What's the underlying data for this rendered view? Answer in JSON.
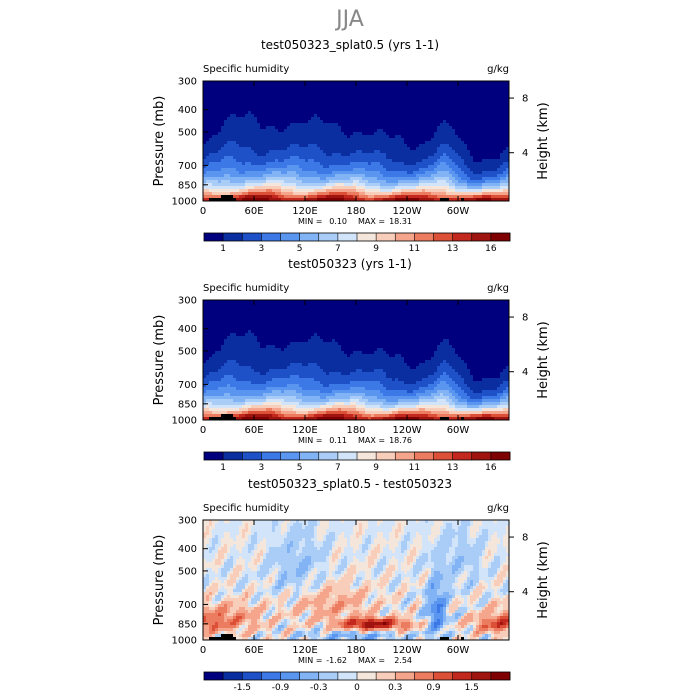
{
  "figure": {
    "season": "JJA",
    "stat_min_label": "MIN =",
    "stat_max_label": "MAX ="
  },
  "chart_data": [
    {
      "type": "heatmap",
      "title": "test050323_splat0.5 (yrs 1-1)",
      "left_label": "Specific humidity",
      "right_label": "g/kg",
      "ylabel": "Pressure  (mb)",
      "ylabel_right": "Height  (km)",
      "xticks": [
        "0",
        "60E",
        "120E",
        "180",
        "120W",
        "60W"
      ],
      "xtick_lons": [
        0,
        60,
        120,
        180,
        240,
        300
      ],
      "xlim": [
        0,
        360
      ],
      "yticks": [
        "300",
        "400",
        "500",
        "700",
        "850",
        "1000"
      ],
      "ytick_values": [
        300,
        400,
        500,
        700,
        850,
        1000
      ],
      "ylim": [
        1000,
        300
      ],
      "yticks_right": [
        "8",
        "4"
      ],
      "ytick_right_pressure": [
        356,
        616
      ],
      "min": "0.10",
      "max": "18.31",
      "colorbar_labels": [
        "1",
        "3",
        "5",
        "7",
        "9",
        "11",
        "13",
        "16"
      ],
      "levels": [
        1,
        2,
        3,
        4,
        5,
        6,
        7,
        8,
        9,
        10,
        11,
        12,
        13,
        14,
        16
      ],
      "colors": [
        "#00007F",
        "#0A2DA0",
        "#1E50C8",
        "#3C78E6",
        "#5A96F0",
        "#82B4F5",
        "#AACDF8",
        "#D2E4FA",
        "#F5E6DC",
        "#F8CDB9",
        "#F5A58C",
        "#EB7C5F",
        "#DC5037",
        "#C3281E",
        "#A0140F",
        "#7F0000"
      ],
      "field": "q",
      "offset": 0
    },
    {
      "type": "heatmap",
      "title": "test050323 (yrs 1-1)",
      "left_label": "Specific humidity",
      "right_label": "g/kg",
      "ylabel": "Pressure  (mb)",
      "ylabel_right": "Height  (km)",
      "xticks": [
        "0",
        "60E",
        "120E",
        "180",
        "120W",
        "60W"
      ],
      "xtick_lons": [
        0,
        60,
        120,
        180,
        240,
        300
      ],
      "xlim": [
        0,
        360
      ],
      "yticks": [
        "300",
        "400",
        "500",
        "700",
        "850",
        "1000"
      ],
      "ytick_values": [
        300,
        400,
        500,
        700,
        850,
        1000
      ],
      "ylim": [
        1000,
        300
      ],
      "yticks_right": [
        "8",
        "4"
      ],
      "ytick_right_pressure": [
        356,
        616
      ],
      "min": "0.11",
      "max": "18.76",
      "colorbar_labels": [
        "1",
        "3",
        "5",
        "7",
        "9",
        "11",
        "13",
        "16"
      ],
      "levels": [
        1,
        2,
        3,
        4,
        5,
        6,
        7,
        8,
        9,
        10,
        11,
        12,
        13,
        14,
        16
      ],
      "colors": [
        "#00007F",
        "#0A2DA0",
        "#1E50C8",
        "#3C78E6",
        "#5A96F0",
        "#82B4F5",
        "#AACDF8",
        "#D2E4FA",
        "#F5E6DC",
        "#F8CDB9",
        "#F5A58C",
        "#EB7C5F",
        "#DC5037",
        "#C3281E",
        "#A0140F",
        "#7F0000"
      ],
      "field": "q",
      "offset": 0.25
    },
    {
      "type": "heatmap",
      "title": "test050323_splat0.5 - test050323",
      "left_label": "Specific humidity",
      "right_label": "g/kg",
      "ylabel": "Pressure  (mb)",
      "ylabel_right": "Height  (km)",
      "xticks": [
        "0",
        "60E",
        "120E",
        "180",
        "120W",
        "60W"
      ],
      "xtick_lons": [
        0,
        60,
        120,
        180,
        240,
        300
      ],
      "xlim": [
        0,
        360
      ],
      "yticks": [
        "300",
        "400",
        "500",
        "700",
        "850",
        "1000"
      ],
      "ytick_values": [
        300,
        400,
        500,
        700,
        850,
        1000
      ],
      "ylim": [
        1000,
        300
      ],
      "yticks_right": [
        "8",
        "4"
      ],
      "ytick_right_pressure": [
        356,
        616
      ],
      "min": "-1.62",
      "max": "2.54",
      "colorbar_labels": [
        "-1.5",
        "-0.9",
        "-0.3",
        "0",
        "0.3",
        "0.9",
        "1.5"
      ],
      "levels": [
        -1.8,
        -1.5,
        -1.2,
        -0.9,
        -0.6,
        -0.3,
        -0.1,
        0,
        0.1,
        0.3,
        0.6,
        0.9,
        1.2,
        1.5,
        1.8
      ],
      "colors": [
        "#00007F",
        "#0A2DA0",
        "#1E50C8",
        "#3C78E6",
        "#5A96F0",
        "#82B4F5",
        "#AACDF8",
        "#D2E4FA",
        "#F5E6DC",
        "#F8CDB9",
        "#F5A58C",
        "#EB7C5F",
        "#DC5037",
        "#C3281E",
        "#A0140F",
        "#7F0000"
      ],
      "field": "diff",
      "offset": 0
    }
  ]
}
